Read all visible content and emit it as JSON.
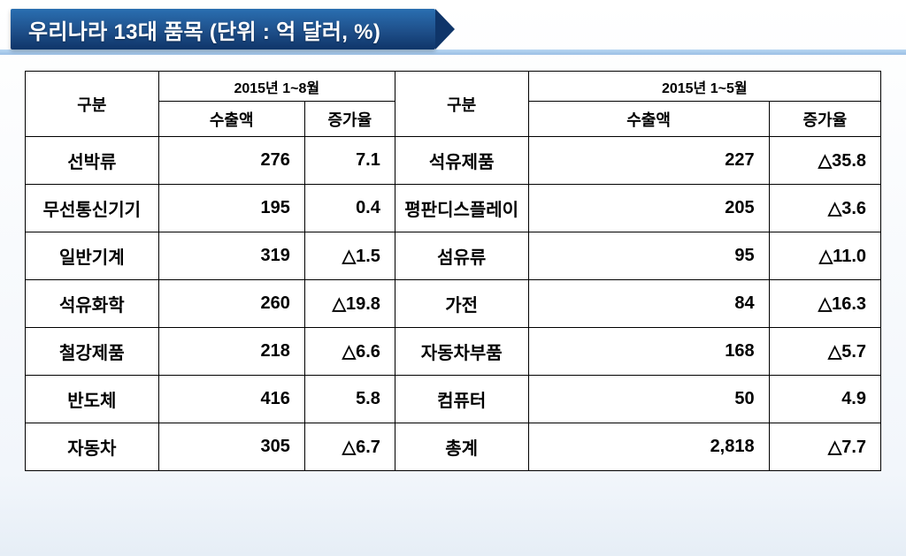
{
  "title": "우리나라 13대 품목 (단위 : 억 달러, %)",
  "headers": {
    "category": "구분",
    "period_left": "2015년 1~8월",
    "period_right": "2015년 1~5월",
    "amount": "수출액",
    "rate": "증가율"
  },
  "rows": [
    {
      "l_cat": "선박류",
      "l_amt": "276",
      "l_rate": "7.1",
      "r_cat": "석유제품",
      "r_amt": "227",
      "r_rate": "△35.8"
    },
    {
      "l_cat": "무선통신기기",
      "l_amt": "195",
      "l_rate": "0.4",
      "r_cat": "평판디스플레이",
      "r_amt": "205",
      "r_rate": "△3.6"
    },
    {
      "l_cat": "일반기계",
      "l_amt": "319",
      "l_rate": "△1.5",
      "r_cat": "섬유류",
      "r_amt": "95",
      "r_rate": "△11.0"
    },
    {
      "l_cat": "석유화학",
      "l_amt": "260",
      "l_rate": "△19.8",
      "r_cat": "가전",
      "r_amt": "84",
      "r_rate": "△16.3"
    },
    {
      "l_cat": "철강제품",
      "l_amt": "218",
      "l_rate": "△6.6",
      "r_cat": "자동차부품",
      "r_amt": "168",
      "r_rate": "△5.7"
    },
    {
      "l_cat": "반도체",
      "l_amt": "416",
      "l_rate": "5.8",
      "r_cat": "컴퓨터",
      "r_amt": "50",
      "r_rate": "4.9"
    },
    {
      "l_cat": "자동차",
      "l_amt": "305",
      "l_rate": "△6.7",
      "r_cat": "총계",
      "r_amt": "2,818",
      "r_rate": "△7.7"
    }
  ],
  "style": {
    "title_bg_gradient": [
      "#2a6fb1",
      "#1e4f8a",
      "#0f3569"
    ],
    "title_color": "#ffffff",
    "title_fontsize": 24,
    "accent_gradient": [
      "#7fb6e7",
      "#4b8ccf"
    ],
    "table_border_color": "#000000",
    "table_bg": "#ffffff",
    "cell_fontsize": 20,
    "header_fontsize": 18,
    "period_fontsize": 16,
    "font_weight": 700,
    "slide_bg_gradient": [
      "#ffffff",
      "#f2f6fb",
      "#e6eef6"
    ],
    "columns": {
      "c-cat": "15.5%",
      "c-amt": "17%",
      "c-rate": "10.5%",
      "c-cat2": "15.5%",
      "c-amt2": "28%",
      "c-rate2": "13%"
    }
  }
}
